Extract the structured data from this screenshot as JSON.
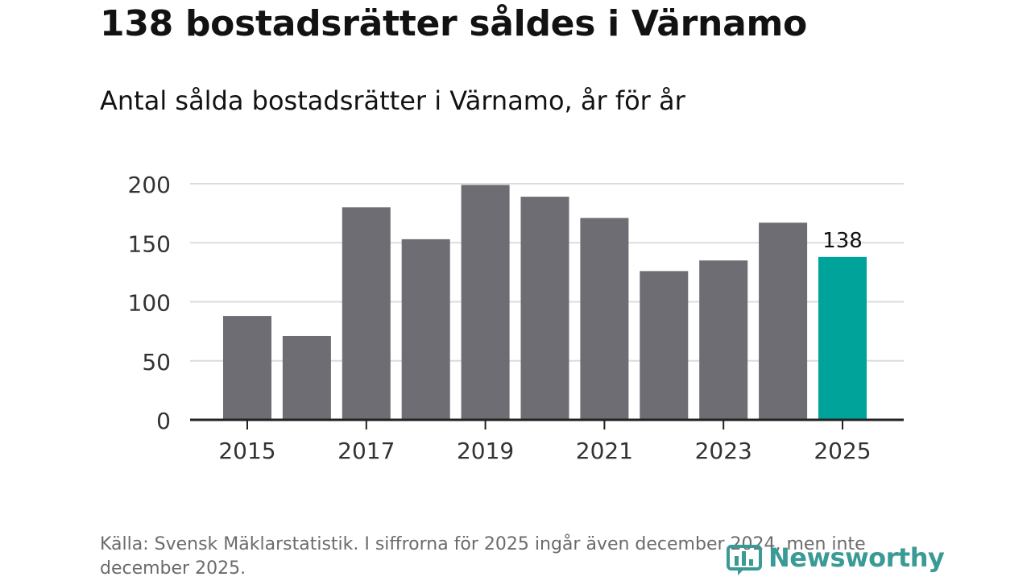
{
  "header": {
    "title": "138 bostadsrätter såldes i Värnamo",
    "subtitle": "Antal sålda bostadsrätter i Värnamo, år för år"
  },
  "chart_data": {
    "type": "bar",
    "categories": [
      "2015",
      "2016",
      "2017",
      "2018",
      "2019",
      "2020",
      "2021",
      "2022",
      "2023",
      "2024",
      "2025"
    ],
    "values": [
      88,
      71,
      180,
      153,
      199,
      189,
      171,
      126,
      135,
      167,
      138
    ],
    "x_tick_labels": [
      "2015",
      "2017",
      "2019",
      "2021",
      "2023",
      "2025"
    ],
    "y_ticks": [
      0,
      50,
      100,
      150,
      200
    ],
    "ylim": [
      0,
      200
    ],
    "title": "138 bostadsrätter såldes i Värnamo",
    "subtitle": "Antal sålda bostadsrätter i Värnamo, år för år",
    "xlabel": "",
    "ylabel": "",
    "grid": true,
    "highlight": {
      "category": "2025",
      "label": "138"
    },
    "colors": {
      "bar": "#6d6d73",
      "highlight": "#00a39a",
      "grid": "#dcdcdc",
      "axis": "#222222"
    }
  },
  "footer": {
    "source": "Källa: Svensk Mäklarstatistik. I siffrorna för 2025 ingår även december 2024, men inte december 2025."
  },
  "brand": {
    "name": "Newsworthy",
    "icon": "newsworthy-logo-icon",
    "color": "#3a9a95"
  }
}
